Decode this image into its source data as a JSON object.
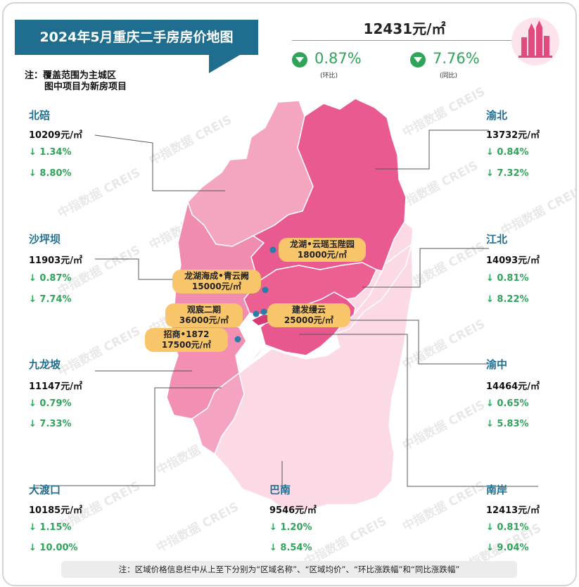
{
  "title": "2024年5月重庆二手房房价地图",
  "notes": [
    "注：覆盖范围为主城区",
    "图中项目为新房项目"
  ],
  "overall": {
    "price": "12431元/㎡",
    "mom": "0.87%",
    "mom_label": "(环比)",
    "yoy": "7.76%",
    "yoy_label": "(同比)"
  },
  "watermark": "中指数据 CREIS",
  "districts": {
    "beibei": {
      "name": "北碚",
      "price": "10209元/㎡",
      "mom": "↓ 1.34%",
      "yoy": "↓ 8.80%"
    },
    "shapingba": {
      "name": "沙坪坝",
      "price": "11903元/㎡",
      "mom": "↓ 0.87%",
      "yoy": "↓ 7.74%"
    },
    "jiulongpo": {
      "name": "九龙坡",
      "price": "11147元/㎡",
      "mom": "↓ 0.79%",
      "yoy": "↓ 7.33%"
    },
    "dadukou": {
      "name": "大渡口",
      "price": "10185元/㎡",
      "mom": "↓ 1.15%",
      "yoy": "↓ 10.00%"
    },
    "banan": {
      "name": "巴南",
      "price": "9546元/㎡",
      "mom": "↓ 1.20%",
      "yoy": "↓ 8.54%"
    },
    "nanan": {
      "name": "南岸",
      "price": "12413元/㎡",
      "mom": "↓ 0.81%",
      "yoy": "↓ 9.04%"
    },
    "yuzhong": {
      "name": "渝中",
      "price": "14464元/㎡",
      "mom": "↓ 0.65%",
      "yoy": "↓ 5.83%"
    },
    "jiangbei": {
      "name": "江北",
      "price": "14093元/㎡",
      "mom": "↓ 0.81%",
      "yoy": "↓ 8.22%"
    },
    "yubei": {
      "name": "渝北",
      "price": "13732元/㎡",
      "mom": "↓ 0.84%",
      "yoy": "↓ 7.32%"
    }
  },
  "projects": [
    {
      "name": "龙湖•云瑶玉陛园",
      "price": "18000元/㎡"
    },
    {
      "name": "龙湖海成•青云阙",
      "price": "15000元/㎡"
    },
    {
      "name": "观宸二期",
      "price": "36000元/㎡"
    },
    {
      "name": "建发缦云",
      "price": "25000元/㎡"
    },
    {
      "name": "招商•1872",
      "price": "17500元/㎡"
    }
  ],
  "footnote": "注：区域价格信息栏中从上至下分别为“区域名称”、“区域均价”、“环比涨跌幅”和“同比涨跌幅”",
  "colors": {
    "title_bg": "#1f6e8f",
    "down": "#2fa45a",
    "project_bg": "#f8c56a"
  }
}
